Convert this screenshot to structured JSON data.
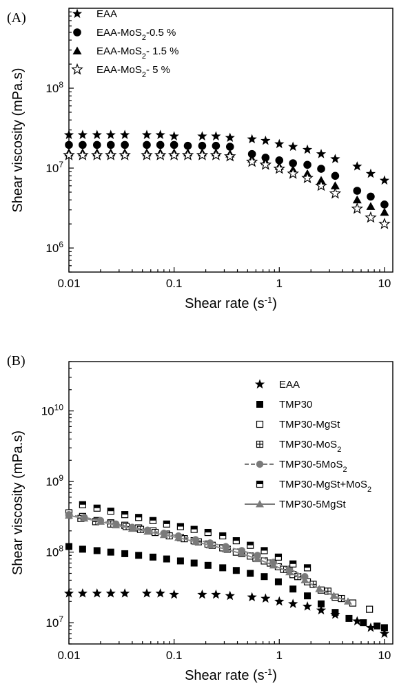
{
  "chart_data": [
    {
      "panel": "(A)",
      "type": "scatter",
      "xlabel": "Shear rate (s⁻¹)",
      "ylabel": "Shear viscosity (mPa.s)",
      "xscale": "log",
      "yscale": "log",
      "xlim": [
        0.01,
        12
      ],
      "ylim": [
        500000,
        1000000000
      ],
      "xticks": [
        "0.01",
        "0.1",
        "1",
        "10"
      ],
      "yticks": [
        {
          "base": "10",
          "exp": "6"
        },
        {
          "base": "10",
          "exp": "7"
        },
        {
          "base": "10",
          "exp": "8"
        }
      ],
      "grid": false,
      "legend_position": "top-left",
      "series": [
        {
          "name": "EAA",
          "marker": "star-filled",
          "x": [
            0.01,
            0.0135,
            0.0185,
            0.025,
            0.034,
            0.055,
            0.074,
            0.1,
            0.185,
            0.25,
            0.34,
            0.55,
            0.74,
            1.0,
            1.35,
            1.85,
            2.5,
            3.4,
            5.5,
            7.4,
            10.0
          ],
          "y": [
            26000000,
            26000000,
            26000000,
            26000000,
            26000000,
            26000000,
            26000000,
            25000000,
            25000000,
            25000000,
            24000000,
            23000000,
            22000000,
            20000000,
            18500000,
            17000000,
            15000000,
            13000000,
            10500000,
            8500000,
            7000000
          ]
        },
        {
          "name": "EAA-MoS₂-0.5 %",
          "marker": "circle-filled",
          "x": [
            0.01,
            0.0135,
            0.0185,
            0.025,
            0.034,
            0.055,
            0.074,
            0.1,
            0.135,
            0.185,
            0.25,
            0.34,
            0.55,
            0.74,
            1.0,
            1.35,
            1.85,
            2.5,
            3.4,
            5.5,
            7.4,
            10.0
          ],
          "y": [
            19500000,
            19500000,
            19500000,
            19500000,
            19500000,
            19500000,
            19500000,
            19500000,
            19000000,
            19000000,
            19000000,
            18500000,
            15000000,
            13500000,
            12500000,
            11500000,
            11000000,
            9800000,
            8000000,
            5200000,
            4400000,
            3500000
          ]
        },
        {
          "name": "EAA-MoS₂- 1.5 %",
          "marker": "triangle-filled",
          "x": [
            0.01,
            0.0135,
            0.0185,
            0.025,
            0.034,
            0.055,
            0.074,
            0.1,
            0.135,
            0.185,
            0.25,
            0.34,
            0.55,
            0.74,
            1.0,
            1.35,
            1.85,
            2.5,
            3.4,
            5.5,
            7.4,
            10.0
          ],
          "y": [
            15500000,
            15500000,
            15500000,
            15500000,
            15500000,
            15500000,
            15500000,
            15500000,
            15500000,
            15500000,
            15500000,
            15000000,
            13000000,
            12000000,
            10500000,
            9500000,
            8500000,
            7000000,
            6000000,
            4000000,
            3300000,
            2800000
          ]
        },
        {
          "name": "EAA-MoS₂- 5 %",
          "marker": "star-open",
          "x": [
            0.01,
            0.0135,
            0.0185,
            0.025,
            0.034,
            0.055,
            0.074,
            0.1,
            0.135,
            0.185,
            0.25,
            0.34,
            0.55,
            0.74,
            1.0,
            1.35,
            1.85,
            2.5,
            3.4,
            5.5,
            7.4,
            10.0
          ],
          "y": [
            14500000,
            14500000,
            14500000,
            14500000,
            14500000,
            14500000,
            14500000,
            14500000,
            14500000,
            14500000,
            14500000,
            14000000,
            12000000,
            11000000,
            9800000,
            8500000,
            7500000,
            6000000,
            4800000,
            3100000,
            2400000,
            2000000
          ]
        }
      ]
    },
    {
      "panel": "(B)",
      "type": "scatter",
      "xlabel": "Shear rate (s⁻¹)",
      "ylabel": "Shear viscosity (mPa.s)",
      "xscale": "log",
      "yscale": "log",
      "xlim": [
        0.01,
        12
      ],
      "ylim": [
        5000000,
        50000000000
      ],
      "xticks": [
        "0.01",
        "0.1",
        "1",
        "10"
      ],
      "yticks": [
        {
          "base": "10",
          "exp": "7"
        },
        {
          "base": "10",
          "exp": "8"
        },
        {
          "base": "10",
          "exp": "9"
        },
        {
          "base": "10",
          "exp": "10"
        }
      ],
      "grid": false,
      "legend_position": "top-right",
      "series": [
        {
          "name": "EAA",
          "marker": "star-filled",
          "x": [
            0.01,
            0.0135,
            0.0185,
            0.025,
            0.034,
            0.055,
            0.074,
            0.1,
            0.185,
            0.25,
            0.34,
            0.55,
            0.74,
            1.0,
            1.35,
            1.85,
            2.5,
            3.4,
            5.5,
            7.4,
            10.0
          ],
          "y": [
            26000000,
            26000000,
            26000000,
            26000000,
            26000000,
            26000000,
            26000000,
            25000000,
            25000000,
            25000000,
            24000000,
            23000000,
            22000000,
            20000000,
            18500000,
            17000000,
            15000000,
            13000000,
            10500000,
            8500000,
            7000000
          ]
        },
        {
          "name": "TMP30",
          "marker": "square-filled",
          "x": [
            0.01,
            0.0135,
            0.0185,
            0.025,
            0.034,
            0.046,
            0.063,
            0.085,
            0.115,
            0.155,
            0.21,
            0.29,
            0.39,
            0.53,
            0.72,
            0.98,
            1.35,
            1.85,
            2.5,
            3.4,
            4.6,
            6.3,
            8.5,
            10.0
          ],
          "y": [
            120000000,
            110000000,
            105000000,
            100000000,
            95000000,
            90000000,
            85000000,
            80000000,
            75000000,
            70000000,
            65000000,
            60000000,
            55000000,
            50000000,
            45000000,
            38000000,
            30000000,
            24000000,
            18500000,
            14000000,
            11500000,
            10000000,
            9000000,
            8500000
          ]
        },
        {
          "name": "TMP30-MgSt",
          "marker": "square-open",
          "x": [
            0.01,
            0.0135,
            0.0185,
            0.025,
            0.034,
            0.046,
            0.063,
            0.085,
            0.115,
            0.155,
            0.21,
            0.29,
            0.39,
            0.53,
            0.72,
            0.98,
            1.35,
            1.85,
            2.5,
            3.4,
            5.0,
            7.2
          ],
          "y": [
            360000000,
            320000000,
            280000000,
            260000000,
            240000000,
            220000000,
            200000000,
            180000000,
            160000000,
            145000000,
            130000000,
            115000000,
            100000000,
            88000000,
            75000000,
            62000000,
            48000000,
            38000000,
            29000000,
            23000000,
            19000000,
            15500000
          ]
        },
        {
          "name": "TMP30-MoS₂",
          "marker": "square-cross",
          "x": [
            0.013,
            0.018,
            0.025,
            0.035,
            0.048,
            0.066,
            0.09,
            0.125,
            0.17,
            0.23,
            0.32,
            0.44,
            0.6,
            0.82,
            1.1,
            1.5,
            2.1,
            2.9,
            3.9
          ],
          "y": [
            300000000,
            270000000,
            250000000,
            230000000,
            210000000,
            190000000,
            170000000,
            155000000,
            140000000,
            125000000,
            110000000,
            95000000,
            82000000,
            70000000,
            57000000,
            45000000,
            35000000,
            28000000,
            22000000
          ]
        },
        {
          "name": "TMP30-5MoS₂",
          "marker": "circle-line",
          "x": [
            0.01,
            0.014,
            0.02,
            0.028,
            0.04,
            0.056,
            0.08,
            0.11,
            0.16,
            0.22,
            0.31,
            0.44,
            0.62,
            0.88,
            1.25,
            1.75
          ],
          "y": [
            340000000,
            310000000,
            280000000,
            250000000,
            225000000,
            205000000,
            185000000,
            170000000,
            150000000,
            135000000,
            120000000,
            105000000,
            90000000,
            72000000,
            58000000,
            45000000
          ]
        },
        {
          "name": "TMP30-MgSt+MoS₂",
          "marker": "square-half",
          "x": [
            0.0135,
            0.0185,
            0.025,
            0.034,
            0.046,
            0.063,
            0.085,
            0.115,
            0.155,
            0.21,
            0.29,
            0.39,
            0.53,
            0.72,
            0.98,
            1.35,
            1.85
          ],
          "y": [
            470000000,
            420000000,
            380000000,
            340000000,
            310000000,
            280000000,
            250000000,
            230000000,
            210000000,
            190000000,
            170000000,
            145000000,
            125000000,
            105000000,
            85000000,
            68000000,
            60000000
          ]
        },
        {
          "name": "TMP30-5MgSt",
          "marker": "triangle-line",
          "x": [
            0.01,
            0.014,
            0.02,
            0.028,
            0.04,
            0.056,
            0.08,
            0.11,
            0.16,
            0.22,
            0.31,
            0.44,
            0.62,
            0.88,
            1.25,
            1.75,
            2.4,
            3.3,
            4.5
          ],
          "y": [
            330000000,
            300000000,
            270000000,
            240000000,
            215000000,
            195000000,
            175000000,
            160000000,
            140000000,
            125000000,
            110000000,
            95000000,
            80000000,
            65000000,
            52000000,
            40000000,
            30000000,
            24000000,
            20000000
          ]
        }
      ]
    }
  ]
}
